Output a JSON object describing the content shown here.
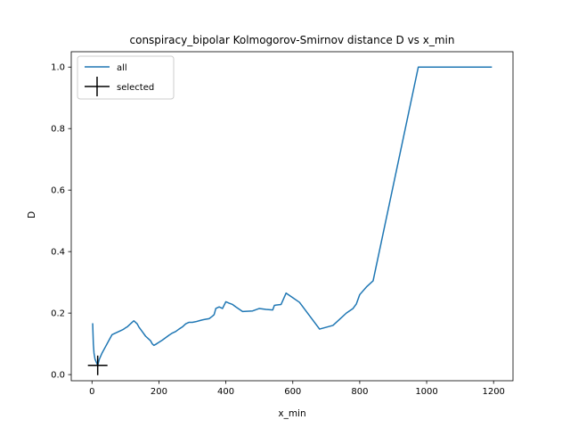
{
  "chart_data": {
    "type": "line",
    "title": "conspiracy_bipolar Kolmogorov-Smirnov distance D vs x_min",
    "xlabel": "x_min",
    "ylabel": "D",
    "xlim": [
      -62,
      1258
    ],
    "ylim": [
      -0.02,
      1.05
    ],
    "xticks": [
      0,
      200,
      400,
      600,
      800,
      1000,
      1200
    ],
    "yticks": [
      0.0,
      0.2,
      0.4,
      0.6,
      0.8,
      1.0
    ],
    "xtick_labels": [
      "0",
      "200",
      "400",
      "600",
      "800",
      "1000",
      "1200"
    ],
    "ytick_labels": [
      "0.0",
      "0.2",
      "0.4",
      "0.6",
      "0.8",
      "1.0"
    ],
    "grid": false,
    "legend_position": "top-left",
    "series": [
      {
        "name": "all",
        "color": "#1f77b4",
        "style": "line",
        "x": [
          2,
          4,
          6,
          9,
          13,
          17,
          22,
          30,
          40,
          50,
          60,
          70,
          80,
          90,
          95,
          100,
          105,
          110,
          115,
          120,
          125,
          130,
          135,
          140,
          150,
          160,
          170,
          175,
          180,
          185,
          190,
          200,
          210,
          220,
          230,
          240,
          250,
          260,
          270,
          280,
          290,
          300,
          310,
          320,
          330,
          340,
          350,
          360,
          365,
          370,
          380,
          390,
          400,
          410,
          420,
          430,
          450,
          480,
          500,
          520,
          540,
          545,
          550,
          565,
          580,
          600,
          620,
          680,
          720,
          740,
          760,
          780,
          790,
          800,
          820,
          840,
          975,
          1195
        ],
        "y": [
          0.167,
          0.1,
          0.07,
          0.05,
          0.04,
          0.03,
          0.05,
          0.07,
          0.09,
          0.11,
          0.13,
          0.135,
          0.14,
          0.145,
          0.148,
          0.152,
          0.155,
          0.16,
          0.165,
          0.17,
          0.175,
          0.17,
          0.165,
          0.155,
          0.14,
          0.125,
          0.115,
          0.11,
          0.1,
          0.095,
          0.098,
          0.105,
          0.112,
          0.12,
          0.128,
          0.135,
          0.14,
          0.148,
          0.155,
          0.165,
          0.17,
          0.17,
          0.172,
          0.175,
          0.178,
          0.18,
          0.182,
          0.19,
          0.195,
          0.215,
          0.22,
          0.215,
          0.237,
          0.232,
          0.228,
          0.22,
          0.205,
          0.207,
          0.215,
          0.212,
          0.21,
          0.225,
          0.226,
          0.228,
          0.265,
          0.25,
          0.235,
          0.148,
          0.16,
          0.18,
          0.2,
          0.215,
          0.23,
          0.26,
          0.285,
          0.305,
          1.0,
          1.0
        ]
      },
      {
        "name": "selected",
        "color": "#000000",
        "style": "marker",
        "marker": "plus",
        "x": [
          17
        ],
        "y": [
          0.03
        ]
      }
    ]
  }
}
